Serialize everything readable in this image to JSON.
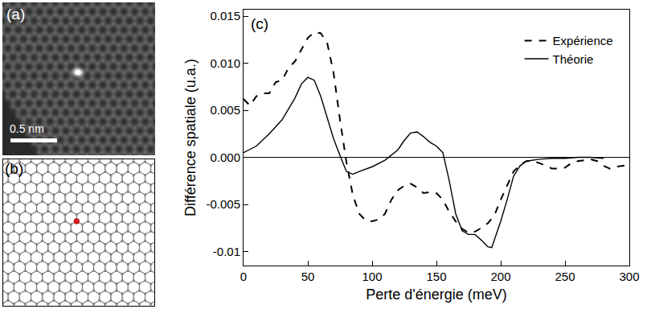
{
  "panels": {
    "a": {
      "label": "(a)",
      "scale_bar": "0.5 nm"
    },
    "b": {
      "label": "(b)"
    }
  },
  "chart_data": {
    "type": "line",
    "annotation": "(c)",
    "x_label": "Perte d'énergie (meV)",
    "y_label": "Différence spatiale (u.a.)",
    "xlim": [
      0,
      300
    ],
    "xticks": [
      0,
      50,
      100,
      150,
      200,
      250,
      300
    ],
    "ylim": [
      -0.0115,
      0.0157
    ],
    "yticks": [
      -0.01,
      -0.005,
      {
        "value": 0,
        "label": "0.000"
      },
      0.005,
      {
        "value": 0.01,
        "label": "0.010"
      },
      0.015
    ],
    "legend": "top right",
    "grid": false,
    "series": [
      {
        "name": "Expérience",
        "color": "#000000",
        "line_style": "dash",
        "x": [
          0,
          5,
          10,
          15,
          20,
          25,
          30,
          35,
          40,
          45,
          50,
          55,
          60,
          65,
          70,
          75,
          80,
          85,
          90,
          95,
          100,
          105,
          110,
          115,
          120,
          125,
          130,
          135,
          140,
          145,
          150,
          155,
          160,
          165,
          170,
          175,
          180,
          185,
          190,
          195,
          200,
          205,
          210,
          215,
          220,
          225,
          230,
          235,
          240,
          245,
          250,
          255,
          260,
          265,
          270,
          275,
          280,
          285,
          290,
          295,
          300
        ],
        "values": [
          0.0062,
          0.0055,
          0.0065,
          0.0068,
          0.0068,
          0.008,
          0.0082,
          0.0095,
          0.0102,
          0.0115,
          0.0127,
          0.0133,
          0.0132,
          0.0122,
          0.009,
          0.004,
          -0.0005,
          -0.004,
          -0.006,
          -0.0067,
          -0.0068,
          -0.0066,
          -0.006,
          -0.0045,
          -0.0035,
          -0.003,
          -0.0028,
          -0.0032,
          -0.0038,
          -0.0037,
          -0.0038,
          -0.0045,
          -0.0058,
          -0.0068,
          -0.0076,
          -0.008,
          -0.0079,
          -0.0075,
          -0.007,
          -0.0062,
          -0.0045,
          -0.003,
          -0.0015,
          -0.0008,
          -0.0004,
          -0.0004,
          -0.0006,
          -0.0009,
          -0.0012,
          -0.0012,
          -0.0011,
          -0.0006,
          -0.0004,
          -0.0003,
          -0.0002,
          -0.0004,
          -0.0009,
          -0.0012,
          -0.001,
          -0.0009,
          -0.0008
        ]
      },
      {
        "name": "Théorie",
        "color": "#000000",
        "line_style": "solid",
        "x": [
          0,
          10,
          20,
          30,
          40,
          45,
          50,
          55,
          60,
          65,
          70,
          75,
          80,
          85,
          90,
          100,
          110,
          120,
          125,
          130,
          135,
          140,
          145,
          150,
          155,
          160,
          165,
          170,
          175,
          180,
          185,
          190,
          193,
          197,
          200,
          205,
          210,
          215,
          220,
          230,
          240,
          250,
          260,
          270,
          280
        ],
        "values": [
          0.0005,
          0.0012,
          0.0025,
          0.004,
          0.0063,
          0.0078,
          0.0085,
          0.0082,
          0.0065,
          0.0042,
          0.002,
          0.0002,
          -0.0015,
          -0.0018,
          -0.0015,
          -0.001,
          -0.0003,
          0.0008,
          0.0018,
          0.0026,
          0.0027,
          0.0022,
          0.0016,
          0.0012,
          0.0005,
          -0.0025,
          -0.006,
          -0.0078,
          -0.0082,
          -0.0082,
          -0.0088,
          -0.0095,
          -0.0096,
          -0.008,
          -0.0068,
          -0.0045,
          -0.002,
          -0.0009,
          -0.0004,
          -0.0002,
          -0.0001,
          -0.0001,
          0,
          0,
          -0.0001
        ]
      }
    ]
  }
}
